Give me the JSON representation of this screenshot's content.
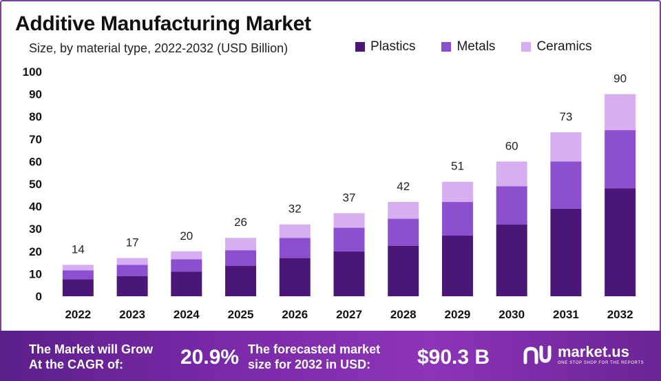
{
  "chart_data": {
    "type": "bar",
    "stacked": true,
    "title": "Additive Manufacturing Market",
    "subtitle": "Size, by material type, 2022-2032 (USD Billion)",
    "categories": [
      "2022",
      "2023",
      "2024",
      "2025",
      "2026",
      "2027",
      "2028",
      "2029",
      "2030",
      "2031",
      "2032"
    ],
    "series": [
      {
        "name": "Plastics",
        "color": "#4a1778",
        "values": [
          7.5,
          9,
          11,
          13.5,
          17,
          20,
          22.5,
          27,
          32,
          39,
          48
        ]
      },
      {
        "name": "Metals",
        "color": "#8c4fd0",
        "values": [
          4,
          5,
          5.5,
          7,
          9,
          10.5,
          12,
          15,
          17,
          21,
          26
        ]
      },
      {
        "name": "Ceramics",
        "color": "#d6aff0",
        "values": [
          2.5,
          3,
          3.5,
          5.5,
          6,
          6.5,
          7.5,
          9,
          11,
          13,
          16
        ]
      }
    ],
    "totals": [
      "14",
      "17",
      "20",
      "26",
      "32",
      "37",
      "42",
      "51",
      "60",
      "73",
      "90"
    ],
    "yticks": [
      "0",
      "10",
      "20",
      "30",
      "40",
      "50",
      "60",
      "70",
      "80",
      "90",
      "100"
    ],
    "ylim": [
      0,
      100
    ],
    "legend_position": "top-right",
    "grid": false
  },
  "footer": {
    "cagr_text_line1": "The Market will Grow",
    "cagr_text_line2": "At the CAGR of:",
    "cagr_value": "20.9%",
    "forecast_text_line1": "The forecasted market",
    "forecast_text_line2": "size for 2032 in USD:",
    "forecast_value": "$90.3 B",
    "logo_name": "market.us",
    "logo_tagline": "ONE STOP SHOP FOR THE REPORTS"
  }
}
